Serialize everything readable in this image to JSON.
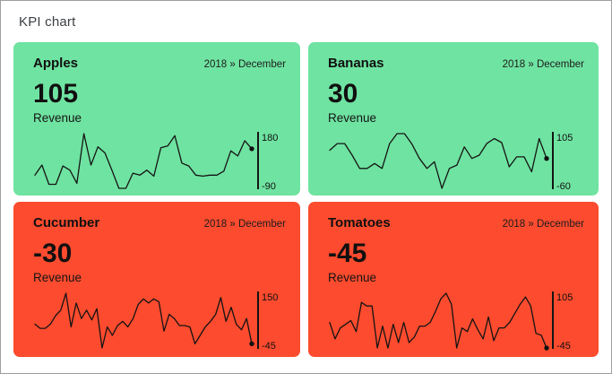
{
  "page": {
    "title": "KPI chart"
  },
  "colors": {
    "positive_bg": "#6fe3a1",
    "negative_bg": "#fc4b2e",
    "line": "#141414",
    "axis": "#141414",
    "dot": "#111111",
    "text": "#101010",
    "page_border": "#9e9e9e",
    "title_text": "#3c4043"
  },
  "chart_data": [
    {
      "type": "line",
      "name": "Apples",
      "period": "2018 » December",
      "value": "105",
      "value_label": "Revenue",
      "sentiment": "positive",
      "axis_max_label": "180",
      "axis_min_label": "-90",
      "ylim": [
        -90,
        180
      ],
      "legend_position": "right-axis",
      "grid": false,
      "values": [
        -25,
        25,
        -70,
        -70,
        20,
        0,
        -65,
        180,
        25,
        115,
        85,
        0,
        -90,
        -90,
        -15,
        -25,
        0,
        -30,
        110,
        120,
        170,
        35,
        20,
        -25,
        -30,
        -25,
        -25,
        -5,
        95,
        70,
        145,
        105
      ]
    },
    {
      "type": "line",
      "name": "Bananas",
      "period": "2018 » December",
      "value": "30",
      "value_label": "Revenue",
      "sentiment": "positive",
      "axis_max_label": "105",
      "axis_min_label": "-60",
      "ylim": [
        -60,
        105
      ],
      "legend_position": "right-axis",
      "grid": false,
      "values": [
        55,
        75,
        75,
        40,
        0,
        0,
        15,
        0,
        75,
        105,
        105,
        73,
        30,
        0,
        20,
        -60,
        0,
        10,
        65,
        30,
        40,
        75,
        90,
        78,
        5,
        35,
        35,
        -10,
        90,
        30
      ]
    },
    {
      "type": "line",
      "name": "Cucumber",
      "period": "2018 » December",
      "value": "-30",
      "value_label": "Revenue",
      "sentiment": "negative",
      "axis_max_label": "150",
      "axis_min_label": "-45",
      "ylim": [
        -45,
        150
      ],
      "legend_position": "right-axis",
      "grid": false,
      "values": [
        40,
        25,
        25,
        40,
        70,
        90,
        150,
        30,
        115,
        60,
        90,
        55,
        95,
        -45,
        30,
        0,
        35,
        50,
        30,
        60,
        110,
        130,
        115,
        130,
        120,
        15,
        75,
        60,
        35,
        35,
        30,
        -30,
        0,
        30,
        50,
        75,
        135,
        50,
        100,
        40,
        20,
        60,
        -30
      ]
    },
    {
      "type": "line",
      "name": "Tomatoes",
      "period": "2018 » December",
      "value": "-45",
      "value_label": "Revenue",
      "sentiment": "negative",
      "axis_max_label": "105",
      "axis_min_label": "-45",
      "ylim": [
        -45,
        105
      ],
      "legend_position": "right-axis",
      "grid": false,
      "values": [
        25,
        -20,
        10,
        20,
        30,
        0,
        80,
        70,
        70,
        -45,
        15,
        -45,
        20,
        -30,
        25,
        -30,
        -15,
        15,
        15,
        25,
        55,
        90,
        105,
        75,
        -45,
        10,
        0,
        35,
        5,
        -20,
        40,
        -25,
        10,
        10,
        25,
        50,
        75,
        95,
        70,
        -5,
        -10,
        -45
      ]
    }
  ]
}
